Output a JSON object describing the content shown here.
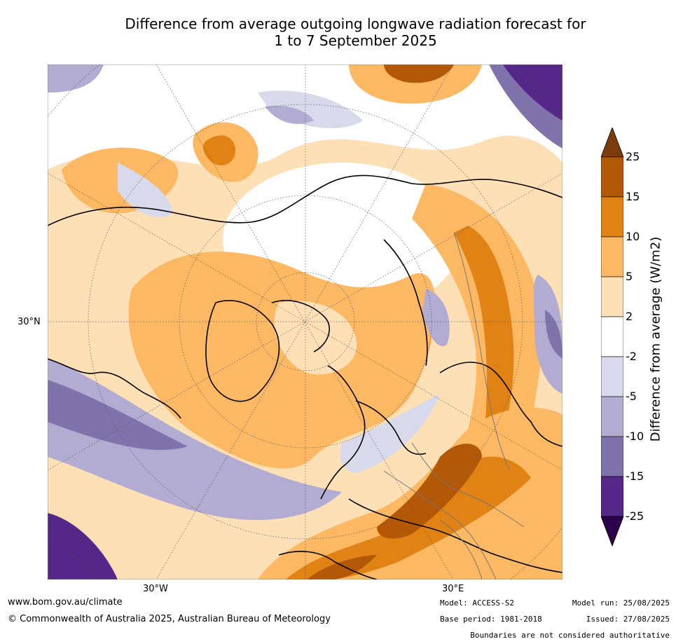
{
  "title": {
    "line1": "Difference from average outgoing longwave radiation forecast for",
    "line2": "1 to 7 September 2025"
  },
  "map": {
    "projection": "north-polar-stereographic",
    "graticule": "dotted",
    "lat_label": "30°N",
    "lon_labels": {
      "west": "30°W",
      "east": "30°E"
    }
  },
  "colorbar": {
    "title": "Difference from average (W/m2)",
    "ticks": [
      "25",
      "15",
      "10",
      "5",
      "2",
      "-2",
      "-5",
      "-10",
      "-15",
      "-25"
    ],
    "colors": [
      "#7b3b0b",
      "#b35806",
      "#e08214",
      "#fdb863",
      "#fee0b6",
      "#ffffff",
      "#d8daeb",
      "#b2abd2",
      "#8073ac",
      "#542788",
      "#2d004b"
    ]
  },
  "footer": {
    "url": "www.bom.gov.au/climate",
    "copyright": "© Commonwealth of Australia 2025, Australian Bureau of Meteorology",
    "model": "Model: ACCESS-S2",
    "base_period": "Base period: 1981-2018",
    "model_run": "Model run: 25/08/2025",
    "issued": "Issued: 27/08/2025",
    "disclaimer": "Boundaries are not considered authoritative"
  }
}
